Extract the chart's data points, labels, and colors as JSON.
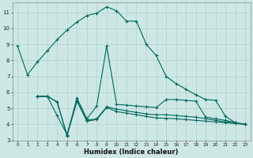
{
  "xlabel": "Humidex (Indice chaleur)",
  "background_color": "#cde8e4",
  "grid_color": "#b0d0cc",
  "line_color": "#006660",
  "xlim": [
    -0.5,
    23.5
  ],
  "ylim": [
    3,
    11.6
  ],
  "yticks": [
    3,
    4,
    5,
    6,
    7,
    8,
    9,
    10,
    11
  ],
  "xticks": [
    0,
    1,
    2,
    3,
    4,
    5,
    6,
    7,
    8,
    9,
    10,
    11,
    12,
    13,
    14,
    15,
    16,
    17,
    18,
    19,
    20,
    21,
    22,
    23
  ],
  "line1_x": [
    0,
    1,
    2,
    3,
    4,
    5,
    6,
    7,
    8,
    9,
    10,
    11,
    12,
    13,
    14,
    15,
    16,
    17,
    18,
    19,
    20,
    21,
    22,
    23
  ],
  "line1_y": [
    8.9,
    7.1,
    7.9,
    8.6,
    9.3,
    9.9,
    10.4,
    10.8,
    10.95,
    11.35,
    11.1,
    10.45,
    10.45,
    9.0,
    8.3,
    7.0,
    6.55,
    6.2,
    5.85,
    5.55,
    5.5,
    4.5,
    4.1,
    4.0
  ],
  "line2_x": [
    2,
    3,
    4,
    5,
    6,
    7,
    8,
    9,
    10,
    11,
    12,
    13,
    14,
    15,
    16,
    17,
    18,
    19,
    20,
    21,
    22,
    23
  ],
  "line2_y": [
    5.75,
    5.75,
    4.55,
    3.35,
    5.65,
    4.35,
    5.15,
    8.9,
    5.25,
    5.2,
    5.15,
    5.1,
    5.05,
    5.55,
    5.55,
    5.5,
    5.45,
    4.45,
    4.35,
    4.25,
    4.1,
    4.0
  ],
  "line3_x": [
    2,
    3,
    4,
    5,
    6,
    7,
    8,
    9,
    10,
    11,
    12,
    13,
    14,
    15,
    16,
    17,
    18,
    19,
    20,
    21,
    22,
    23
  ],
  "line3_y": [
    5.75,
    5.75,
    5.4,
    3.3,
    5.5,
    4.25,
    4.35,
    5.1,
    4.95,
    4.85,
    4.75,
    4.65,
    4.6,
    4.6,
    4.55,
    4.5,
    4.45,
    4.35,
    4.25,
    4.15,
    4.1,
    4.0
  ],
  "line4_x": [
    2,
    3,
    4,
    5,
    6,
    7,
    8,
    9,
    10,
    11,
    12,
    13,
    14,
    15,
    16,
    17,
    18,
    19,
    20,
    21,
    22,
    23
  ],
  "line4_y": [
    5.75,
    5.75,
    5.4,
    3.3,
    5.45,
    4.2,
    4.3,
    5.05,
    4.8,
    4.7,
    4.6,
    4.5,
    4.4,
    4.38,
    4.35,
    4.3,
    4.25,
    4.2,
    4.15,
    4.1,
    4.05,
    4.0
  ]
}
